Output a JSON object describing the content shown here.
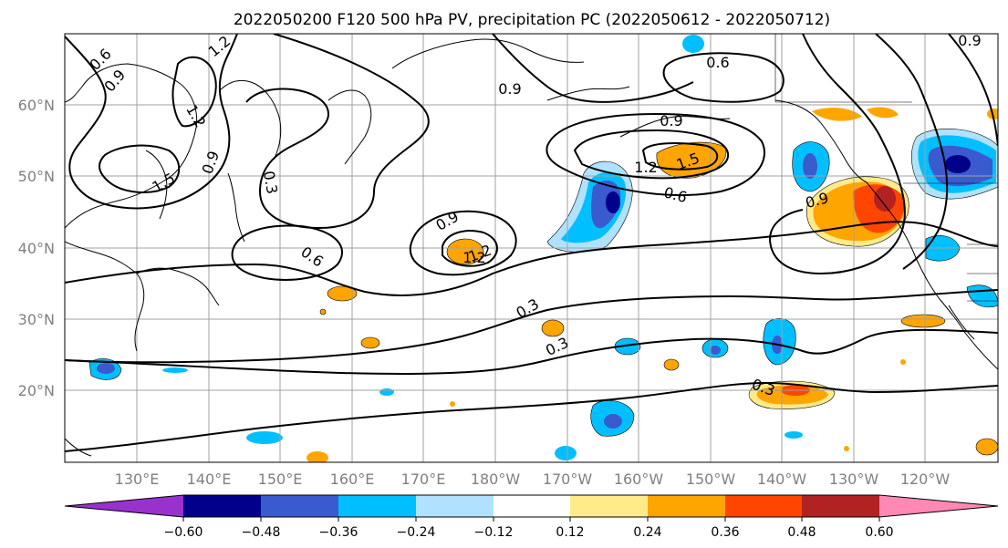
{
  "title": "2022050200 F120 500 hPa PV, precipitation PC (2022050612 - 2022050712)",
  "map": {
    "lat_labels": [
      "60°N",
      "50°N",
      "40°N",
      "30°N",
      "20°N"
    ],
    "lon_labels": [
      "130°E",
      "140°E",
      "150°E",
      "160°E",
      "170°E",
      "180°W",
      "170°W",
      "160°W",
      "150°W",
      "140°W",
      "130°W",
      "120°W"
    ],
    "contour_labels": [
      "0.6",
      "0.9",
      "1.2",
      "1.2",
      "1.5",
      "0.9",
      "0.3",
      "0.9",
      "0.6",
      "0.9",
      "1.2",
      "0.6",
      "1.2",
      "0.9",
      "1.2",
      "1.5",
      "0.6",
      "0.9",
      "0.9",
      "0.3",
      "0.3",
      "0.3"
    ],
    "grid": true
  },
  "colorbar": {
    "ticks": [
      "−0.60",
      "−0.48",
      "−0.36",
      "−0.24",
      "−0.12",
      "0.12",
      "0.24",
      "0.36",
      "0.48",
      "0.60"
    ],
    "colors": [
      "#9932cc",
      "#00008b",
      "#3a5bcf",
      "#00bfff",
      "#b0e2ff",
      "#ffffff",
      "#ffeb8a",
      "#ffa500",
      "#ff4500",
      "#b22222",
      "#ff88b4"
    ]
  },
  "colors": {
    "contour": "#000000",
    "coast": "#000000",
    "grid": "#a0a0a0",
    "tick_text": "#808080"
  }
}
